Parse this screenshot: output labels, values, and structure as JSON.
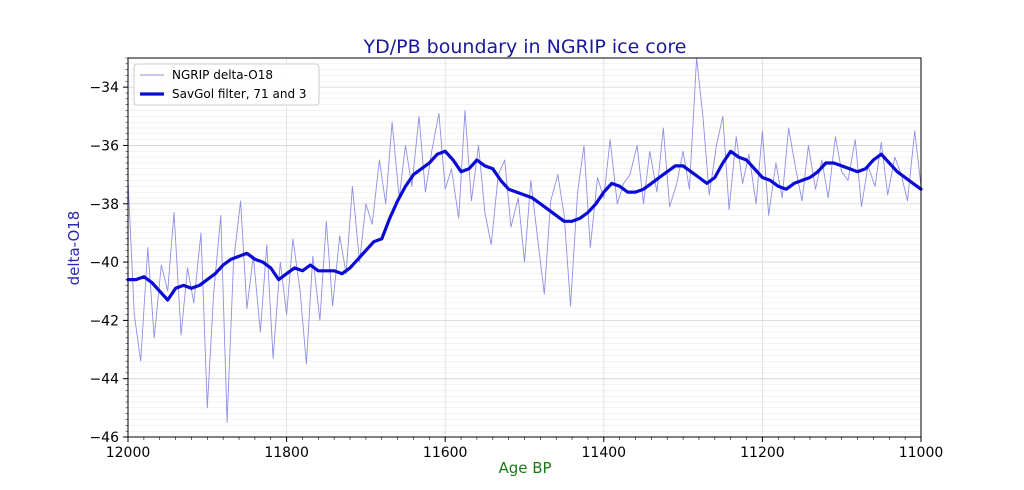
{
  "chart_data": {
    "type": "line",
    "title": "YD/PB boundary in NGRIP ice core",
    "xlabel": "Age BP",
    "ylabel": "delta-O18",
    "xlim": [
      12000,
      11000
    ],
    "ylim": [
      -46,
      -33
    ],
    "x_inverted": true,
    "xticks": [
      12000,
      11800,
      11600,
      11400,
      11200,
      11000
    ],
    "yticks": [
      -46,
      -44,
      -42,
      -40,
      -38,
      -36,
      -34
    ],
    "grid": true,
    "legend": "top-left",
    "colors": {
      "raw": "#8f8fe6",
      "smooth": "#0a0ad6"
    },
    "series": [
      {
        "name": "NGRIP delta-O18",
        "style": "thin",
        "x": [
          12000,
          11992,
          11984,
          11975,
          11967,
          11958,
          11950,
          11942,
          11933,
          11925,
          11917,
          11908,
          11900,
          11892,
          11883,
          11875,
          11867,
          11858,
          11850,
          11842,
          11833,
          11825,
          11817,
          11808,
          11800,
          11792,
          11783,
          11775,
          11767,
          11758,
          11750,
          11742,
          11733,
          11725,
          11717,
          11708,
          11700,
          11692,
          11683,
          11675,
          11667,
          11658,
          11650,
          11642,
          11633,
          11625,
          11617,
          11608,
          11600,
          11592,
          11583,
          11575,
          11567,
          11558,
          11550,
          11542,
          11533,
          11525,
          11517,
          11508,
          11500,
          11492,
          11483,
          11475,
          11467,
          11458,
          11450,
          11442,
          11433,
          11425,
          11417,
          11408,
          11400,
          11392,
          11383,
          11375,
          11367,
          11358,
          11350,
          11342,
          11333,
          11325,
          11317,
          11308,
          11300,
          11292,
          11283,
          11275,
          11267,
          11258,
          11250,
          11242,
          11233,
          11225,
          11217,
          11208,
          11200,
          11192,
          11183,
          11175,
          11167,
          11158,
          11150,
          11142,
          11133,
          11125,
          11117,
          11108,
          11100,
          11092,
          11083,
          11075,
          11067,
          11058,
          11050,
          11042,
          11033,
          11025,
          11017,
          11008,
          11000
        ],
        "y": [
          -37.2,
          -41.8,
          -43.4,
          -39.5,
          -42.6,
          -40.1,
          -41.0,
          -38.3,
          -42.5,
          -40.2,
          -41.4,
          -39.0,
          -45.0,
          -41.1,
          -38.4,
          -45.5,
          -40.0,
          -37.9,
          -41.6,
          -39.8,
          -42.4,
          -39.4,
          -43.3,
          -40.0,
          -41.8,
          -39.2,
          -41.0,
          -43.5,
          -39.8,
          -42.0,
          -38.6,
          -41.5,
          -39.1,
          -40.4,
          -37.4,
          -40.0,
          -38.0,
          -38.7,
          -36.5,
          -38.0,
          -35.2,
          -37.8,
          -36.0,
          -37.4,
          -35.0,
          -37.6,
          -36.2,
          -34.9,
          -37.5,
          -36.8,
          -38.5,
          -34.8,
          -37.9,
          -36.0,
          -38.3,
          -39.4,
          -37.0,
          -36.5,
          -38.8,
          -37.8,
          -40.0,
          -37.2,
          -39.3,
          -41.1,
          -37.9,
          -37.0,
          -38.4,
          -41.5,
          -37.6,
          -36.0,
          -39.5,
          -37.1,
          -37.8,
          -35.8,
          -38.0,
          -37.3,
          -37.0,
          -36.0,
          -38.0,
          -36.2,
          -37.6,
          -35.4,
          -38.1,
          -37.3,
          -36.2,
          -37.5,
          -33.0,
          -35.0,
          -37.7,
          -36.0,
          -35.0,
          -38.2,
          -35.7,
          -37.3,
          -36.3,
          -38.0,
          -35.5,
          -38.4,
          -36.6,
          -37.8,
          -35.4,
          -36.8,
          -37.9,
          -36.0,
          -37.5,
          -36.5,
          -37.8,
          -35.7,
          -36.9,
          -37.2,
          -35.8,
          -38.1,
          -36.7,
          -37.4,
          -35.9,
          -37.7,
          -36.4,
          -37.0,
          -37.9,
          -35.5,
          -37.4
        ]
      },
      {
        "name": "SavGol filter, 71 and 3",
        "style": "thick",
        "x": [
          12000,
          11990,
          11980,
          11970,
          11960,
          11950,
          11940,
          11930,
          11920,
          11910,
          11900,
          11890,
          11880,
          11870,
          11860,
          11850,
          11840,
          11830,
          11820,
          11810,
          11800,
          11790,
          11780,
          11770,
          11760,
          11750,
          11740,
          11730,
          11720,
          11710,
          11700,
          11690,
          11680,
          11670,
          11660,
          11650,
          11640,
          11630,
          11620,
          11610,
          11600,
          11590,
          11580,
          11570,
          11560,
          11550,
          11540,
          11530,
          11520,
          11510,
          11500,
          11490,
          11480,
          11470,
          11460,
          11450,
          11440,
          11430,
          11420,
          11410,
          11400,
          11390,
          11380,
          11370,
          11360,
          11350,
          11340,
          11330,
          11320,
          11310,
          11300,
          11290,
          11280,
          11270,
          11260,
          11250,
          11240,
          11230,
          11220,
          11210,
          11200,
          11190,
          11180,
          11170,
          11160,
          11150,
          11140,
          11130,
          11120,
          11110,
          11100,
          11090,
          11080,
          11070,
          11060,
          11050,
          11040,
          11030,
          11020,
          11010,
          11000
        ],
        "y": [
          -40.6,
          -40.6,
          -40.5,
          -40.7,
          -41.0,
          -41.3,
          -40.9,
          -40.8,
          -40.9,
          -40.8,
          -40.6,
          -40.4,
          -40.1,
          -39.9,
          -39.8,
          -39.7,
          -39.9,
          -40.0,
          -40.2,
          -40.6,
          -40.4,
          -40.2,
          -40.3,
          -40.1,
          -40.3,
          -40.3,
          -40.3,
          -40.4,
          -40.2,
          -39.9,
          -39.6,
          -39.3,
          -39.2,
          -38.5,
          -37.9,
          -37.4,
          -37.0,
          -36.8,
          -36.6,
          -36.3,
          -36.2,
          -36.5,
          -36.9,
          -36.8,
          -36.5,
          -36.7,
          -36.8,
          -37.2,
          -37.5,
          -37.6,
          -37.7,
          -37.8,
          -38.0,
          -38.2,
          -38.4,
          -38.6,
          -38.6,
          -38.5,
          -38.3,
          -38.0,
          -37.6,
          -37.3,
          -37.4,
          -37.6,
          -37.6,
          -37.5,
          -37.3,
          -37.1,
          -36.9,
          -36.7,
          -36.7,
          -36.9,
          -37.1,
          -37.3,
          -37.1,
          -36.6,
          -36.2,
          -36.4,
          -36.5,
          -36.8,
          -37.1,
          -37.2,
          -37.4,
          -37.5,
          -37.3,
          -37.2,
          -37.1,
          -36.9,
          -36.6,
          -36.6,
          -36.7,
          -36.8,
          -36.9,
          -36.8,
          -36.5,
          -36.3,
          -36.6,
          -36.9,
          -37.1,
          -37.3,
          -37.5
        ]
      }
    ]
  }
}
